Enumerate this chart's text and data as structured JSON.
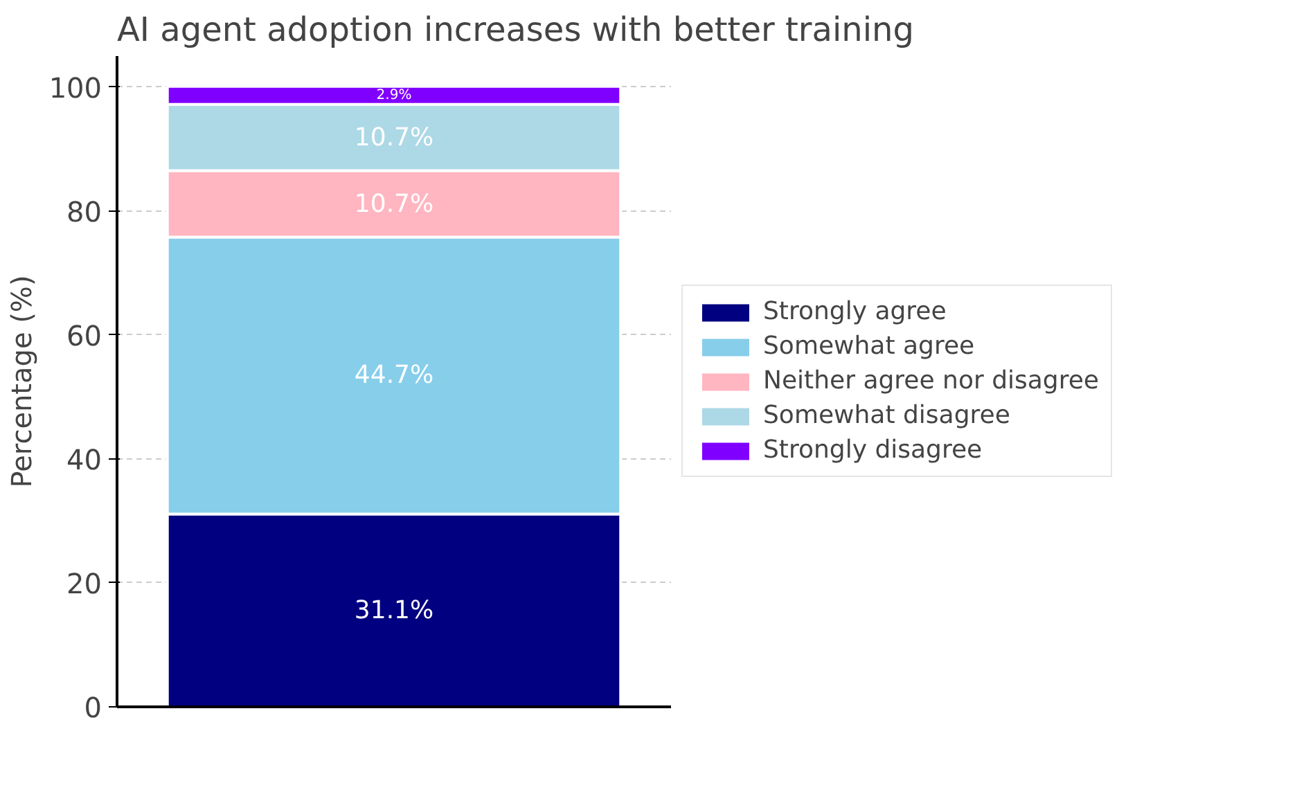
{
  "chart_data": {
    "type": "bar",
    "title": "AI agent adoption increases with better training",
    "ylabel": "Percentage (%)",
    "categories": [
      null
    ],
    "stacked": true,
    "ylim": [
      0,
      105
    ],
    "yticks": [
      0,
      20,
      40,
      60,
      80,
      100
    ],
    "grid": "y",
    "legend": "right",
    "series": [
      {
        "name": "Strongly agree",
        "color": "#000080",
        "values": [
          31.1
        ],
        "value_labels": [
          "31.1%"
        ]
      },
      {
        "name": "Somewhat agree",
        "color": "#87ceeb",
        "values": [
          44.7
        ],
        "value_labels": [
          "44.7%"
        ]
      },
      {
        "name": "Neither agree nor disagree",
        "color": "#ffb6c1",
        "values": [
          10.7
        ],
        "value_labels": [
          "10.7%"
        ]
      },
      {
        "name": "Somewhat disagree",
        "color": "#add8e6",
        "values": [
          10.7
        ],
        "value_labels": [
          "10.7%"
        ]
      },
      {
        "name": "Strongly disagree",
        "color": "#8000ff",
        "values": [
          2.9
        ],
        "value_labels": [
          "2.9%"
        ]
      }
    ]
  }
}
